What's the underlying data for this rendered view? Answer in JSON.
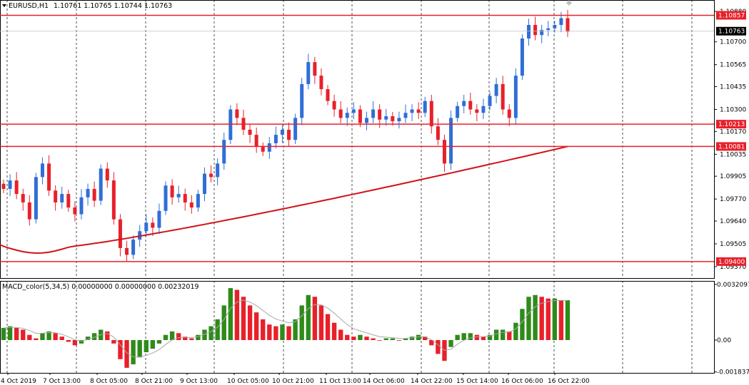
{
  "header": {
    "symbol": "EURUSD,H1",
    "ohlc": "1.10761 1.10765 1.10744 1.10763"
  },
  "macd_header": "MACD_color(5,34,5) 0.00000000 0.00000000 0.00232019",
  "price_axis_labels": [
    {
      "text": "1.10880",
      "v": 1.1088
    },
    {
      "text": "1.10700",
      "v": 1.107
    },
    {
      "text": "1.10565",
      "v": 1.10565
    },
    {
      "text": "1.10435",
      "v": 1.10435
    },
    {
      "text": "1.10300",
      "v": 1.103
    },
    {
      "text": "1.10170",
      "v": 1.1017
    },
    {
      "text": "1.10035",
      "v": 1.10035
    },
    {
      "text": "1.09905",
      "v": 1.09905
    },
    {
      "text": "1.09770",
      "v": 1.0977
    },
    {
      "text": "1.09640",
      "v": 1.0964
    },
    {
      "text": "1.09505",
      "v": 1.09505
    },
    {
      "text": "1.09370",
      "v": 1.0937
    }
  ],
  "level_boxes": [
    {
      "text": "1.10857",
      "v": 1.10857,
      "color": "#e8202a"
    },
    {
      "text": "1.10213",
      "v": 1.10213,
      "color": "#e8202a"
    },
    {
      "text": "1.10081",
      "v": 1.10081,
      "color": "#e8202a"
    },
    {
      "text": "1.09400",
      "v": 1.094,
      "color": "#e8202a"
    }
  ],
  "current_price": {
    "text": "1.10763",
    "v": 1.10763,
    "color": "#000000"
  },
  "macd_axis_labels": [
    {
      "text": "0.0032097",
      "v": 0.0032097
    },
    {
      "text": "0.00",
      "v": 0.0
    },
    {
      "text": "-0.0018378",
      "v": -0.0018378
    }
  ],
  "time_labels": [
    "4 Oct 2019",
    "7 Oct 13:00",
    "8 Oct 05:00",
    "8 Oct 21:00",
    "9 Oct 13:00",
    "10 Oct 05:00",
    "10 Oct 21:00",
    "11 Oct 13:00",
    "14 Oct 06:00",
    "14 Oct 22:00",
    "15 Oct 14:00",
    "16 Oct 06:00",
    "16 Oct 22:00"
  ],
  "colors": {
    "bull": "#2f6fd6",
    "bear": "#e8202a",
    "ma": "#d0121a",
    "macd_up": "#2e8b1a",
    "macd_down": "#e8202a",
    "signal": "#a8a8a8",
    "grid": "#000000"
  },
  "chart_data": [
    {
      "type": "candlestick",
      "title": "EURUSD,H1",
      "ylim": [
        1.0937,
        1.1092
      ],
      "horizontal_levels": [
        1.10857,
        1.10213,
        1.10081,
        1.094
      ],
      "x": [
        "4 Oct 2019",
        "7 Oct 13:00",
        "8 Oct 05:00",
        "8 Oct 21:00",
        "9 Oct 13:00",
        "10 Oct 05:00",
        "10 Oct 21:00",
        "11 Oct 13:00",
        "14 Oct 06:00",
        "14 Oct 22:00",
        "15 Oct 14:00",
        "16 Oct 06:00",
        "16 Oct 22:00"
      ],
      "close_path": [
        1.0983,
        1.0988,
        1.098,
        1.0975,
        1.0965,
        1.099,
        1.0998,
        1.0982,
        1.0975,
        1.098,
        1.0972,
        1.0968,
        1.0978,
        1.0983,
        1.0976,
        1.0995,
        1.0988,
        1.0965,
        1.0948,
        1.0944,
        1.0953,
        1.0958,
        1.0963,
        1.096,
        1.097,
        1.0985,
        1.0978,
        1.098,
        1.0975,
        1.0972,
        1.098,
        1.0992,
        1.099,
        1.0998,
        1.1012,
        1.103,
        1.1025,
        1.1018,
        1.1015,
        1.1008,
        1.1005,
        1.101,
        1.1015,
        1.1018,
        1.1012,
        1.1025,
        1.1045,
        1.1058,
        1.105,
        1.1042,
        1.1035,
        1.103,
        1.1025,
        1.1028,
        1.103,
        1.1022,
        1.1025,
        1.103,
        1.1024,
        1.1026,
        1.1023,
        1.1025,
        1.1028,
        1.103,
        1.1028,
        1.1035,
        1.102,
        1.1012,
        1.0998,
        1.1025,
        1.1032,
        1.1035,
        1.103,
        1.1028,
        1.1032,
        1.1038,
        1.1045,
        1.103,
        1.1025,
        1.105,
        1.1072,
        1.108,
        1.1074,
        1.1077,
        1.1078,
        1.108,
        1.1084,
        1.1076
      ]
    },
    {
      "type": "bar",
      "title": "MACD_color(5,34,5)",
      "ylim": [
        -0.0018378,
        0.0032097
      ],
      "values": [
        0.0007,
        0.0008,
        0.0007,
        0.0006,
        0.0003,
        0.0001,
        0.0004,
        0.0005,
        0.0004,
        0.0002,
        -0.0001,
        -0.0003,
        -0.0002,
        0.0002,
        0.0004,
        0.0006,
        0.0005,
        -0.0002,
        -0.0011,
        -0.0016,
        -0.0014,
        -0.001,
        -0.0007,
        -0.0005,
        -0.0002,
        0.0003,
        0.0005,
        0.0004,
        0.0002,
        0.0001,
        0.0003,
        0.0006,
        0.0008,
        0.0012,
        0.002,
        0.003,
        0.0029,
        0.0025,
        0.002,
        0.0016,
        0.0012,
        0.0009,
        0.0008,
        0.0009,
        0.0008,
        0.0012,
        0.002,
        0.0026,
        0.0025,
        0.002,
        0.0015,
        0.001,
        0.0006,
        0.0003,
        0.0002,
        0.0003,
        0.0002,
        0.0001,
        0.0,
        0.0001,
        0.0001,
        0.0,
        0.0001,
        0.0002,
        0.0003,
        0.0002,
        -0.0003,
        -0.0008,
        -0.0012,
        -0.0004,
        0.0003,
        0.0004,
        0.0004,
        0.0003,
        0.0002,
        0.0003,
        0.0006,
        0.0006,
        0.0005,
        0.001,
        0.0018,
        0.0025,
        0.0026,
        0.0025,
        0.0024,
        0.0024,
        0.0023,
        0.0023
      ]
    }
  ]
}
